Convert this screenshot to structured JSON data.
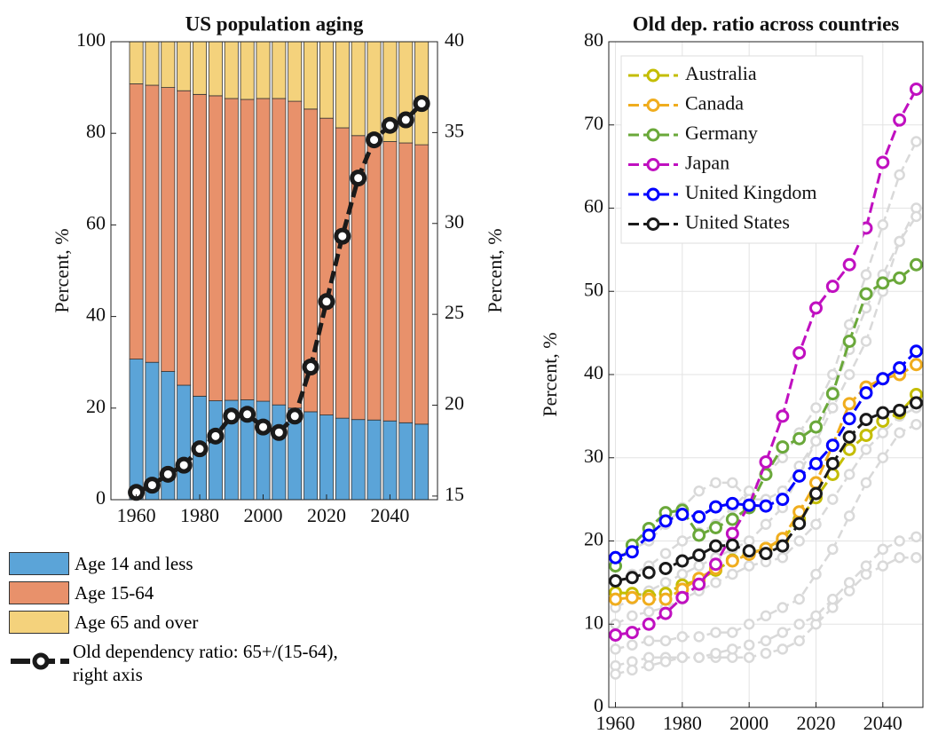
{
  "chart_data": [
    {
      "type": "bar",
      "stacked": true,
      "title": "US population aging",
      "ylabel": "Percent, %",
      "y2label": "Percent, %",
      "x": [
        1960,
        1965,
        1970,
        1975,
        1980,
        1985,
        1990,
        1995,
        2000,
        2005,
        2010,
        2015,
        2020,
        2025,
        2030,
        2035,
        2040,
        2045,
        2050
      ],
      "xlim": [
        1952,
        2055
      ],
      "xticks": [
        1960,
        1980,
        2000,
        2020,
        2040
      ],
      "ylim": [
        0,
        100
      ],
      "yticks": [
        0,
        20,
        40,
        60,
        80,
        100
      ],
      "y2lim": [
        14.8,
        40
      ],
      "y2ticks": [
        15,
        20,
        25,
        30,
        35,
        40
      ],
      "legend": "below",
      "series": [
        {
          "name": "Age 14 and less",
          "color": "#5ba4d8",
          "values": [
            30.7,
            30,
            28,
            25,
            22.6,
            21.6,
            21.7,
            21.8,
            21.5,
            20.7,
            20,
            19.2,
            18.5,
            17.8,
            17.5,
            17.4,
            17.2,
            16.8,
            16.5
          ]
        },
        {
          "name": "Age 15-64",
          "color": "#e8916b",
          "values": [
            60.1,
            60.5,
            62,
            64.3,
            65.9,
            66.6,
            65.9,
            65.6,
            66.1,
            66.9,
            67,
            66.1,
            64.8,
            63.4,
            62,
            61.2,
            61,
            61.1,
            61
          ]
        },
        {
          "name": "Age 65 and over",
          "color": "#f4d27c",
          "values": [
            9.2,
            9.5,
            10,
            10.7,
            11.5,
            11.8,
            12.4,
            12.6,
            12.4,
            12.4,
            13,
            14.7,
            16.7,
            18.8,
            20.5,
            21.4,
            21.8,
            22.1,
            22.5
          ]
        },
        {
          "name": "Old dependency ratio: 65+/(15-64), right axis",
          "type": "line",
          "axis": "y2",
          "color": "#1a1a1a",
          "values": [
            15.2,
            15.6,
            16.2,
            16.7,
            17.6,
            18.3,
            19.4,
            19.5,
            18.8,
            18.5,
            19.4,
            22.1,
            25.7,
            29.3,
            32.5,
            34.6,
            35.4,
            35.7,
            36.6
          ]
        }
      ]
    },
    {
      "type": "line",
      "title": "Old dep. ratio across countries",
      "ylabel": "Percent, %",
      "x": [
        1960,
        1965,
        1970,
        1975,
        1980,
        1985,
        1990,
        1995,
        2000,
        2005,
        2010,
        2015,
        2020,
        2025,
        2030,
        2035,
        2040,
        2045,
        2050
      ],
      "xlim": [
        1958,
        2052
      ],
      "xticks": [
        1960,
        1980,
        2000,
        2020,
        2040
      ],
      "ylim": [
        0,
        80
      ],
      "yticks": [
        0,
        10,
        20,
        30,
        40,
        50,
        60,
        70,
        80
      ],
      "grid": true,
      "legend": "upper left",
      "background_series": {
        "color": "#d9d9d9",
        "values": [
          [
            15,
            16,
            17,
            18.5,
            20,
            21,
            22,
            24,
            26,
            28,
            30,
            33,
            36,
            40,
            46,
            52,
            58,
            64,
            68
          ],
          [
            18,
            19,
            20,
            22,
            24,
            26,
            27,
            27,
            25,
            25,
            26,
            29,
            32,
            36,
            40,
            44,
            50,
            56,
            60
          ],
          [
            7,
            7.5,
            8,
            8,
            8.5,
            8.5,
            9,
            9,
            10,
            11,
            12,
            13,
            16,
            19,
            23,
            27,
            30,
            33,
            34
          ],
          [
            5,
            5.5,
            6,
            6,
            6,
            6,
            6,
            6,
            6,
            6.5,
            7,
            8,
            10,
            12,
            14,
            16,
            17,
            18,
            18
          ],
          [
            10,
            11,
            11.5,
            12,
            13,
            14,
            15,
            16,
            17,
            17.5,
            18,
            20,
            22,
            25,
            28,
            31,
            33,
            35,
            36
          ],
          [
            4,
            4.5,
            5,
            5.5,
            6,
            6,
            6.5,
            7,
            7.5,
            8,
            9,
            10,
            11,
            13,
            15,
            17,
            19,
            20,
            20.5
          ],
          [
            12,
            13,
            14,
            15,
            16,
            17,
            18,
            19,
            20,
            22,
            24,
            28,
            32,
            38,
            43,
            48,
            52,
            56,
            59
          ]
        ]
      },
      "series": [
        {
          "name": "Australia",
          "color": "#c4bd00",
          "values": [
            13.8,
            13.7,
            13.4,
            13.7,
            14.7,
            15.3,
            16.5,
            17.7,
            18.5,
            19.1,
            20.2,
            22.6,
            25.2,
            28,
            31,
            32.7,
            34.4,
            35.4,
            37.6
          ]
        },
        {
          "name": "Canada",
          "color": "#f0ad1e",
          "values": [
            13,
            13.2,
            13,
            13,
            14.2,
            15.5,
            16.7,
            17.6,
            18.4,
            19.1,
            20.3,
            23.5,
            27,
            31.5,
            36.5,
            38.5,
            39.5,
            40,
            41.2
          ]
        },
        {
          "name": "Germany",
          "color": "#6aa83a",
          "values": [
            17,
            19.5,
            21.5,
            23.4,
            23.7,
            20.7,
            21.6,
            22.6,
            24,
            28,
            31.3,
            32.3,
            33.7,
            37.7,
            44,
            49.7,
            51,
            51.6,
            53.2
          ]
        },
        {
          "name": "Japan",
          "color": "#c010c0",
          "values": [
            8.7,
            9,
            10,
            11.3,
            13.2,
            14.8,
            17.2,
            20.9,
            24.3,
            29.5,
            35,
            42.6,
            48,
            50.6,
            53.2,
            57.6,
            65.5,
            70.6,
            74.3
          ]
        },
        {
          "name": "United Kingdom",
          "color": "#0000ff",
          "values": [
            18,
            18.7,
            20.7,
            22.4,
            23.2,
            22.9,
            24.1,
            24.5,
            24.3,
            24.2,
            25,
            27.8,
            29.3,
            31.5,
            34.7,
            37.8,
            39.5,
            40.8,
            42.8
          ]
        },
        {
          "name": "United States",
          "color": "#1a1a1a",
          "values": [
            15.2,
            15.6,
            16.2,
            16.7,
            17.6,
            18.3,
            19.4,
            19.5,
            18.8,
            18.5,
            19.4,
            22.1,
            25.7,
            29.3,
            32.5,
            34.6,
            35.4,
            35.7,
            36.6
          ]
        }
      ]
    }
  ]
}
